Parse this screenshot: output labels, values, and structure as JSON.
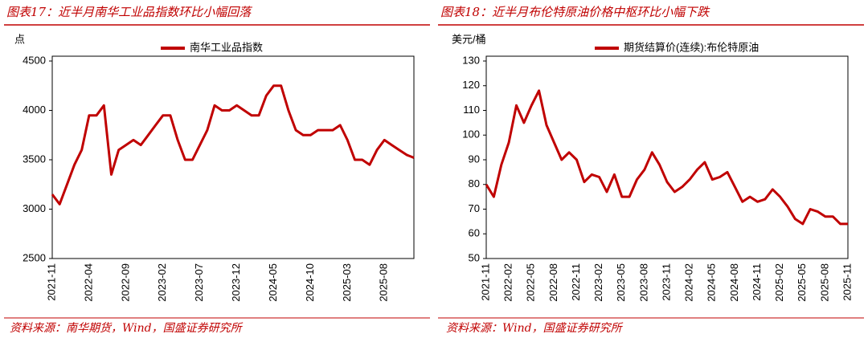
{
  "chart_data": [
    {
      "type": "line",
      "title": "图表17：近半月南华工业品指数环比小幅回落",
      "y_label": "点",
      "source": "资料来源：南华期货，Wind，国盛证券研究所",
      "categories": [
        "2021-11",
        null,
        null,
        null,
        null,
        "2022-04",
        null,
        null,
        null,
        null,
        "2022-09",
        null,
        null,
        null,
        null,
        "2023-02",
        null,
        null,
        null,
        null,
        "2023-07",
        null,
        null,
        null,
        null,
        "2023-12",
        null,
        null,
        null,
        null,
        "2024-05",
        null,
        null,
        null,
        null,
        "2024-10",
        null,
        null,
        null,
        null,
        "2025-03",
        null,
        null,
        null,
        null,
        "2025-08",
        null,
        null,
        null,
        null
      ],
      "series": [
        {
          "name": "南华工业品指数",
          "color": "#c00000",
          "values": [
            3150,
            3050,
            3250,
            3450,
            3600,
            3950,
            3950,
            4050,
            3350,
            3600,
            3650,
            3700,
            3650,
            3750,
            3850,
            3950,
            3950,
            3700,
            3500,
            3500,
            3650,
            3800,
            4050,
            4000,
            4000,
            4050,
            4000,
            3950,
            3950,
            4150,
            4250,
            4250,
            4000,
            3800,
            3750,
            3750,
            3800,
            3800,
            3800,
            3850,
            3700,
            3500,
            3500,
            3450,
            3600,
            3700,
            3650,
            3600,
            3550,
            3520
          ]
        }
      ],
      "ylim": [
        2500,
        4500
      ],
      "yticks": [
        2500,
        3000,
        3500,
        4000,
        4500
      ],
      "legend": "top"
    },
    {
      "type": "line",
      "title": "图表18：近半月布伦特原油价格中枢环比小幅下跌",
      "y_label": "美元/桶",
      "source": "资料来源：Wind，国盛证券研究所",
      "categories": [
        "2021-11",
        null,
        null,
        "2022-02",
        null,
        null,
        "2022-05",
        null,
        null,
        "2022-08",
        null,
        null,
        "2022-11",
        null,
        null,
        "2023-02",
        null,
        null,
        "2023-05",
        null,
        null,
        "2023-08",
        null,
        null,
        "2023-11",
        null,
        null,
        "2024-02",
        null,
        null,
        "2024-05",
        null,
        null,
        "2024-08",
        null,
        null,
        "2024-11",
        null,
        null,
        "2025-02",
        null,
        null,
        "2025-05",
        null,
        null,
        "2025-08",
        null,
        null,
        "2025-11"
      ],
      "series": [
        {
          "name": "期货结算价(连续):布伦特原油",
          "color": "#c00000",
          "values": [
            80,
            75,
            88,
            97,
            112,
            105,
            112,
            118,
            104,
            97,
            90,
            93,
            90,
            81,
            84,
            83,
            77,
            84,
            75,
            75,
            82,
            86,
            93,
            88,
            81,
            77,
            79,
            82,
            86,
            89,
            82,
            83,
            85,
            79,
            73,
            75,
            73,
            74,
            78,
            75,
            71,
            66,
            64,
            70,
            69,
            67,
            67,
            64,
            64
          ]
        }
      ],
      "ylim": [
        50,
        130
      ],
      "yticks": [
        50,
        60,
        70,
        80,
        90,
        100,
        110,
        120,
        130
      ],
      "legend": "top"
    }
  ]
}
